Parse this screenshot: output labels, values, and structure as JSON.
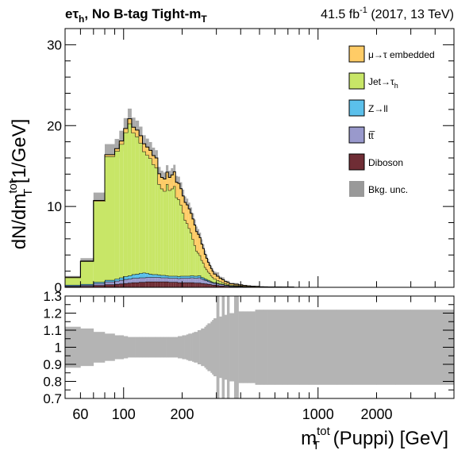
{
  "header": {
    "title_main": "eτ",
    "title_sub": "h",
    "title_rest": ", No B-tag Tight-m",
    "title_sub2": "T",
    "lumi_value": "41.5 fb",
    "lumi_exp": "-1",
    "lumi_rest": " (2017, 13 TeV)"
  },
  "axes": {
    "ylabel_main": "dN/dm",
    "ylabel_sup": "tot",
    "ylabel_sub": "T",
    "ylabel_unit": " [1/GeV]",
    "xlabel_main": "m",
    "xlabel_sup": "tot",
    "xlabel_sub": "T",
    "xlabel_rest": " (Puppi) [GeV]"
  },
  "legend": {
    "items": [
      {
        "label": "μ→τ embedded",
        "color": "#ffcc66"
      },
      {
        "label": "Jet→τ",
        "sub": "h",
        "color": "#c8e667"
      },
      {
        "label": "Z→ll",
        "color": "#5bc0eb"
      },
      {
        "label": "t",
        "label_over": "t̅",
        "color": "#9999cc"
      },
      {
        "label": "Diboson",
        "color": "#6f2d35"
      },
      {
        "label": "Bkg. unc.",
        "color": "#999999"
      }
    ]
  },
  "chart_data": [
    {
      "type": "area",
      "stacked": true,
      "xscale": "log",
      "xlim": [
        50,
        5000
      ],
      "ylim": [
        0,
        32
      ],
      "x_edges": [
        50,
        60,
        70,
        80,
        90,
        95,
        100,
        105,
        110,
        115,
        120,
        125,
        130,
        135,
        140,
        145,
        150,
        155,
        160,
        165,
        170,
        175,
        180,
        185,
        190,
        195,
        200,
        205,
        210,
        215,
        220,
        225,
        230,
        235,
        240,
        245,
        250,
        255,
        260,
        265,
        270,
        275,
        280,
        285,
        290,
        300,
        310,
        320,
        330,
        340,
        350,
        370,
        390,
        410,
        430,
        450,
        475,
        500,
        525,
        550,
        600,
        650,
        700,
        750,
        800,
        900,
        1000,
        1250,
        1500,
        2000,
        2500,
        3000,
        5000
      ],
      "yticks": [
        0,
        10,
        20,
        30
      ],
      "xticks": [
        100,
        200,
        1000,
        2000
      ],
      "xtick_labels": [
        "100",
        "200",
        "1000",
        "2000"
      ],
      "series": [
        {
          "name": "Diboson",
          "color": "#6f2d35",
          "values": [
            0.1,
            0.15,
            0.25,
            0.35,
            0.4,
            0.45,
            0.5,
            0.55,
            0.6,
            0.6,
            0.65,
            0.65,
            0.7,
            0.7,
            0.7,
            0.7,
            0.7,
            0.7,
            0.7,
            0.7,
            0.65,
            0.65,
            0.65,
            0.65,
            0.6,
            0.6,
            0.6,
            0.6,
            0.6,
            0.6,
            0.6,
            0.6,
            0.55,
            0.55,
            0.55,
            0.55,
            0.5,
            0.5,
            0.45,
            0.45,
            0.4,
            0.4,
            0.35,
            0.3,
            0.3,
            0.25,
            0.2,
            0.2,
            0.15,
            0.15,
            0.1,
            0.1,
            0.08,
            0.06,
            0.05,
            0.04,
            0.03,
            0.02,
            0.02,
            0.01,
            0.01,
            0.01,
            0.01,
            0.0,
            0.0,
            0.0,
            0.0,
            0.0,
            0.0,
            0.0,
            0.0,
            0.0
          ]
        },
        {
          "name": "t̅t",
          "color": "#9999cc",
          "values": [
            0.1,
            0.15,
            0.25,
            0.35,
            0.4,
            0.45,
            0.5,
            0.5,
            0.55,
            0.55,
            0.55,
            0.55,
            0.55,
            0.55,
            0.55,
            0.55,
            0.55,
            0.5,
            0.5,
            0.5,
            0.5,
            0.5,
            0.5,
            0.5,
            0.5,
            0.55,
            0.55,
            0.55,
            0.55,
            0.55,
            0.6,
            0.6,
            0.6,
            0.6,
            0.65,
            0.65,
            0.55,
            0.5,
            0.45,
            0.4,
            0.35,
            0.3,
            0.28,
            0.25,
            0.22,
            0.2,
            0.18,
            0.15,
            0.12,
            0.1,
            0.08,
            0.06,
            0.05,
            0.04,
            0.03,
            0.02,
            0.02,
            0.01,
            0.01,
            0.01,
            0.01,
            0.0,
            0.0,
            0.0,
            0.0,
            0.0,
            0.0,
            0.0,
            0.0,
            0.0,
            0.0,
            0.0
          ]
        },
        {
          "name": "Z→ll",
          "color": "#5bc0eb",
          "values": [
            0.1,
            0.1,
            0.15,
            0.2,
            0.25,
            0.3,
            0.35,
            0.4,
            0.45,
            0.5,
            0.55,
            0.6,
            0.5,
            0.4,
            0.35,
            0.35,
            0.3,
            0.3,
            0.3,
            0.25,
            0.25,
            0.25,
            0.25,
            0.25,
            0.25,
            0.25,
            0.25,
            0.25,
            0.25,
            0.25,
            0.25,
            0.25,
            0.25,
            0.25,
            0.25,
            0.25,
            0.2,
            0.2,
            0.18,
            0.15,
            0.15,
            0.12,
            0.1,
            0.1,
            0.08,
            0.07,
            0.06,
            0.05,
            0.04,
            0.03,
            0.03,
            0.02,
            0.02,
            0.01,
            0.01,
            0.01,
            0.01,
            0.0,
            0.0,
            0.0,
            0.0,
            0.0,
            0.0,
            0.0,
            0.0,
            0.0,
            0.0,
            0.0,
            0.0,
            0.0,
            0.0,
            0.0
          ]
        },
        {
          "name": "Jet→τh",
          "color": "#c8e667",
          "values": [
            0.9,
            2.8,
            10.0,
            15.3,
            15.8,
            16.5,
            17.8,
            18.8,
            17.5,
            17.0,
            16.1,
            15.0,
            14.6,
            14.3,
            13.6,
            13.2,
            11.2,
            10.7,
            10.4,
            11.3,
            10.6,
            10.8,
            11.1,
            9.7,
            9.5,
            8.8,
            7.8,
            6.9,
            6.5,
            5.9,
            5.3,
            4.5,
            3.8,
            3.1,
            2.8,
            2.5,
            2.1,
            1.8,
            1.4,
            1.2,
            1.0,
            0.9,
            0.7,
            0.6,
            0.45,
            0.35,
            0.28,
            0.2,
            0.15,
            0.12,
            0.1,
            0.08,
            0.06,
            0.04,
            0.03,
            0.02,
            0.02,
            0.01,
            0.01,
            0.01,
            0.0,
            0.0,
            0.0,
            0.0,
            0.0,
            0.0,
            0.0,
            0.0,
            0.0,
            0.0,
            0.0,
            0.0
          ]
        },
        {
          "name": "μ→τ embedded",
          "color": "#ffcc66",
          "values": [
            0.05,
            0.05,
            0.1,
            0.2,
            0.3,
            0.4,
            0.5,
            0.6,
            0.7,
            0.8,
            0.9,
            0.95,
            1.0,
            1.0,
            1.1,
            1.2,
            1.3,
            1.4,
            1.5,
            1.5,
            1.6,
            1.7,
            1.8,
            1.9,
            2.0,
            2.0,
            2.1,
            2.2,
            2.3,
            2.4,
            2.4,
            2.5,
            2.5,
            2.4,
            2.3,
            2.2,
            2.0,
            1.8,
            1.6,
            1.4,
            1.2,
            1.0,
            0.9,
            0.75,
            0.6,
            0.5,
            0.4,
            0.35,
            0.25,
            0.2,
            0.15,
            0.12,
            0.1,
            0.08,
            0.06,
            0.05,
            0.04,
            0.03,
            0.02,
            0.02,
            0.01,
            0.01,
            0.01,
            0.0,
            0.0,
            0.0,
            0.0,
            0.0,
            0.0,
            0.0,
            0.0,
            0.0
          ]
        }
      ]
    },
    {
      "type": "bar",
      "role": "ratio",
      "xscale": "log",
      "ylim": [
        0.7,
        1.3
      ],
      "yticks": [
        0.7,
        0.8,
        0.9,
        1.0,
        1.1,
        1.2,
        1.3
      ],
      "ytick_labels": [
        "0.7",
        "0.8",
        "0.9",
        "1",
        "1.1",
        "1.2",
        "1.3"
      ],
      "xticks": [
        100,
        200,
        1000,
        2000
      ],
      "xtick_labels": [
        "100",
        "200",
        "1000",
        "2000"
      ],
      "band_name": "Bkg. unc.",
      "band_half_width": [
        0.12,
        0.11,
        0.09,
        0.08,
        0.07,
        0.07,
        0.065,
        0.06,
        0.06,
        0.06,
        0.06,
        0.06,
        0.06,
        0.06,
        0.06,
        0.06,
        0.06,
        0.06,
        0.06,
        0.06,
        0.06,
        0.06,
        0.06,
        0.06,
        0.065,
        0.065,
        0.07,
        0.07,
        0.075,
        0.08,
        0.08,
        0.085,
        0.09,
        0.09,
        0.1,
        0.1,
        0.11,
        0.11,
        0.12,
        0.13,
        0.14,
        0.14,
        0.15,
        0.16,
        0.17,
        0.35,
        0.18,
        0.3,
        0.19,
        0.35,
        0.2,
        0.4,
        0.21,
        0.21,
        0.21,
        0.21,
        0.22,
        0.22,
        0.22,
        0.22,
        0.22,
        0.22,
        0.22,
        0.22,
        0.22,
        0.22,
        0.22,
        0.22,
        0.22,
        0.22,
        0.22,
        0.22
      ]
    }
  ]
}
